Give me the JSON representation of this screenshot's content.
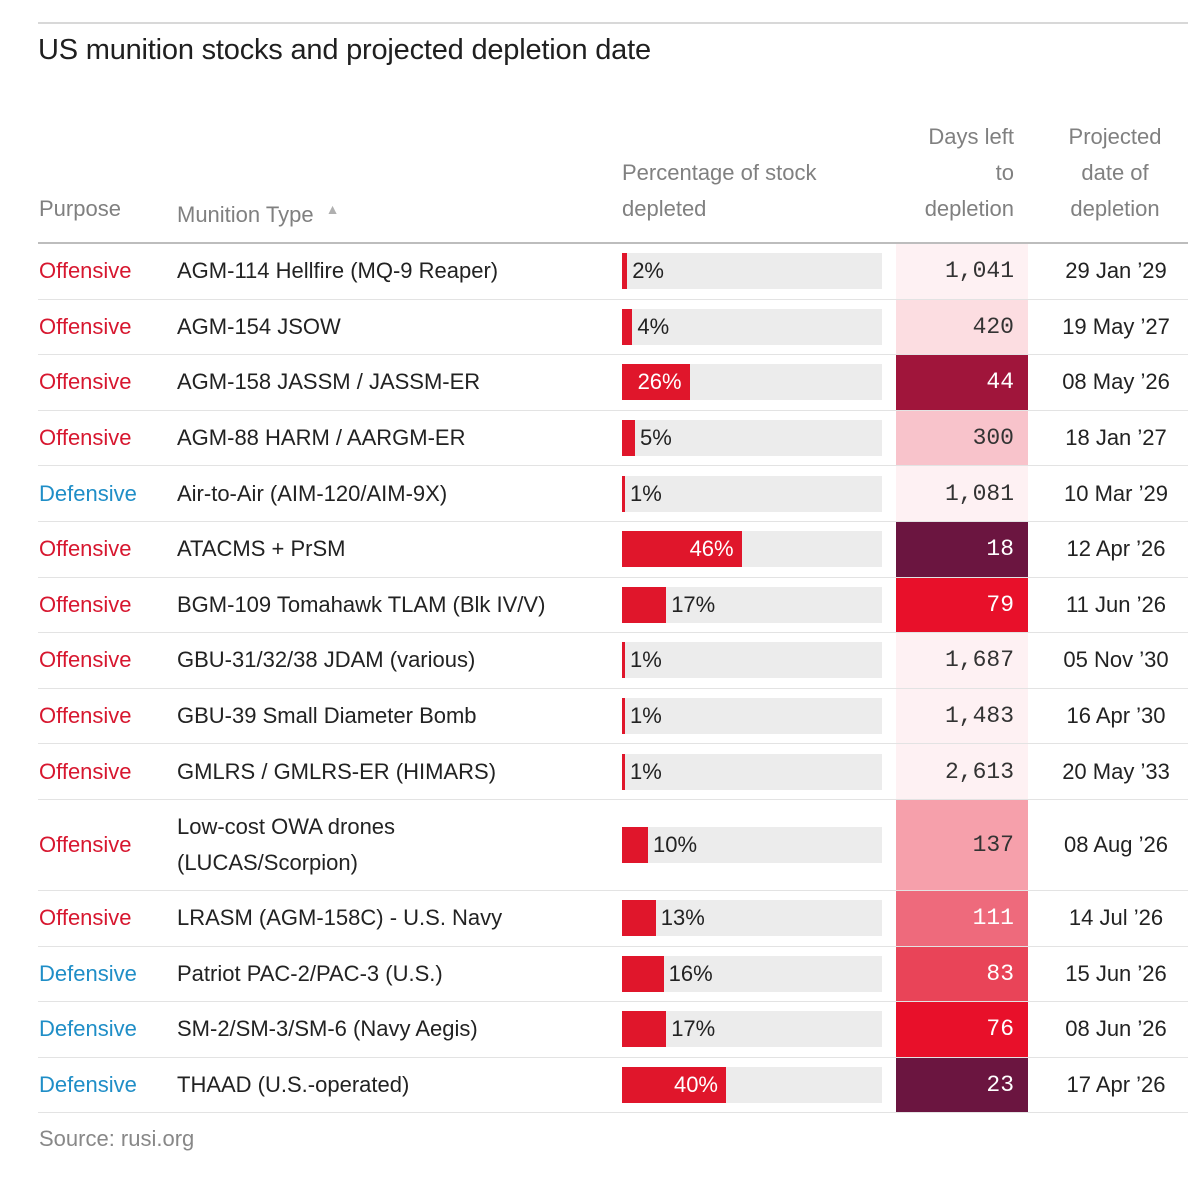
{
  "title": "US munition stocks and projected depletion date",
  "headers": {
    "purpose": "Purpose",
    "munition_type": "Munition Type",
    "sort_icon": "▲",
    "percentage": [
      "Percentage of stock",
      "depleted"
    ],
    "days_left": [
      "Days left",
      "to",
      "depletion"
    ],
    "projected": [
      "Projected",
      "date of",
      "depletion"
    ]
  },
  "colors": {
    "offensive": "#d7172f",
    "defensive": "#1f8ec7",
    "bar": "#e0162b",
    "bar_track": "#ececec",
    "days_scale": [
      "#fde7ea",
      "#f6a3ae",
      "#e8374c",
      "#a0153b",
      "#6b1540"
    ]
  },
  "chart_data": {
    "type": "table",
    "columns": [
      "Purpose",
      "Munition Type",
      "Percentage of stock depleted",
      "Days left to depletion",
      "Projected date of depletion"
    ],
    "rows": [
      {
        "purpose": "Offensive",
        "type": "AGM-114 Hellfire (MQ-9 Reaper)",
        "pct": 2,
        "pct_label": "2%",
        "days": "1,041",
        "date": "29 Jan ’29"
      },
      {
        "purpose": "Offensive",
        "type": "AGM-154 JSOW",
        "pct": 4,
        "pct_label": "4%",
        "days": "420",
        "date": "19 May ’27"
      },
      {
        "purpose": "Offensive",
        "type": "AGM-158 JASSM / JASSM-ER",
        "pct": 26,
        "pct_label": "26%",
        "days": "44",
        "date": "08 May ’26"
      },
      {
        "purpose": "Offensive",
        "type": "AGM-88 HARM / AARGM-ER",
        "pct": 5,
        "pct_label": "5%",
        "days": "300",
        "date": "18 Jan ’27"
      },
      {
        "purpose": "Defensive",
        "type": "Air-to-Air (AIM-120/AIM-9X)",
        "pct": 1,
        "pct_label": "1%",
        "days": "1,081",
        "date": "10 Mar ’29"
      },
      {
        "purpose": "Offensive",
        "type": "ATACMS + PrSM",
        "pct": 46,
        "pct_label": "46%",
        "days": "18",
        "date": "12 Apr ’26"
      },
      {
        "purpose": "Offensive",
        "type": "BGM-109 Tomahawk TLAM (Blk IV/V)",
        "pct": 17,
        "pct_label": "17%",
        "days": "79",
        "date": "11 Jun ’26"
      },
      {
        "purpose": "Offensive",
        "type": "GBU-31/32/38 JDAM (various)",
        "pct": 1,
        "pct_label": "1%",
        "days": "1,687",
        "date": "05 Nov ’30"
      },
      {
        "purpose": "Offensive",
        "type": "GBU-39 Small Diameter Bomb",
        "pct": 1,
        "pct_label": "1%",
        "days": "1,483",
        "date": "16 Apr ’30"
      },
      {
        "purpose": "Offensive",
        "type": "GMLRS / GMLRS-ER (HIMARS)",
        "pct": 1,
        "pct_label": "1%",
        "days": "2,613",
        "date": "20 May ’33"
      },
      {
        "purpose": "Offensive",
        "type": "Low-cost OWA drones (LUCAS/Scorpion)",
        "pct": 10,
        "pct_label": "10%",
        "days": "137",
        "date": "08 Aug ’26"
      },
      {
        "purpose": "Offensive",
        "type": "LRASM (AGM-158C) - U.S. Navy",
        "pct": 13,
        "pct_label": "13%",
        "days": "111",
        "date": "14 Jul ’26"
      },
      {
        "purpose": "Defensive",
        "type": "Patriot PAC-2/PAC-3 (U.S.)",
        "pct": 16,
        "pct_label": "16%",
        "days": "83",
        "date": "15 Jun ’26"
      },
      {
        "purpose": "Defensive",
        "type": "SM-2/SM-3/SM-6 (Navy Aegis)",
        "pct": 17,
        "pct_label": "17%",
        "days": "76",
        "date": "08 Jun ’26"
      },
      {
        "purpose": "Defensive",
        "type": "THAAD (U.S.-operated)",
        "pct": 40,
        "pct_label": "40%",
        "days": "23",
        "date": "17 Apr ’26"
      }
    ]
  },
  "source": "Source: rusi.org"
}
